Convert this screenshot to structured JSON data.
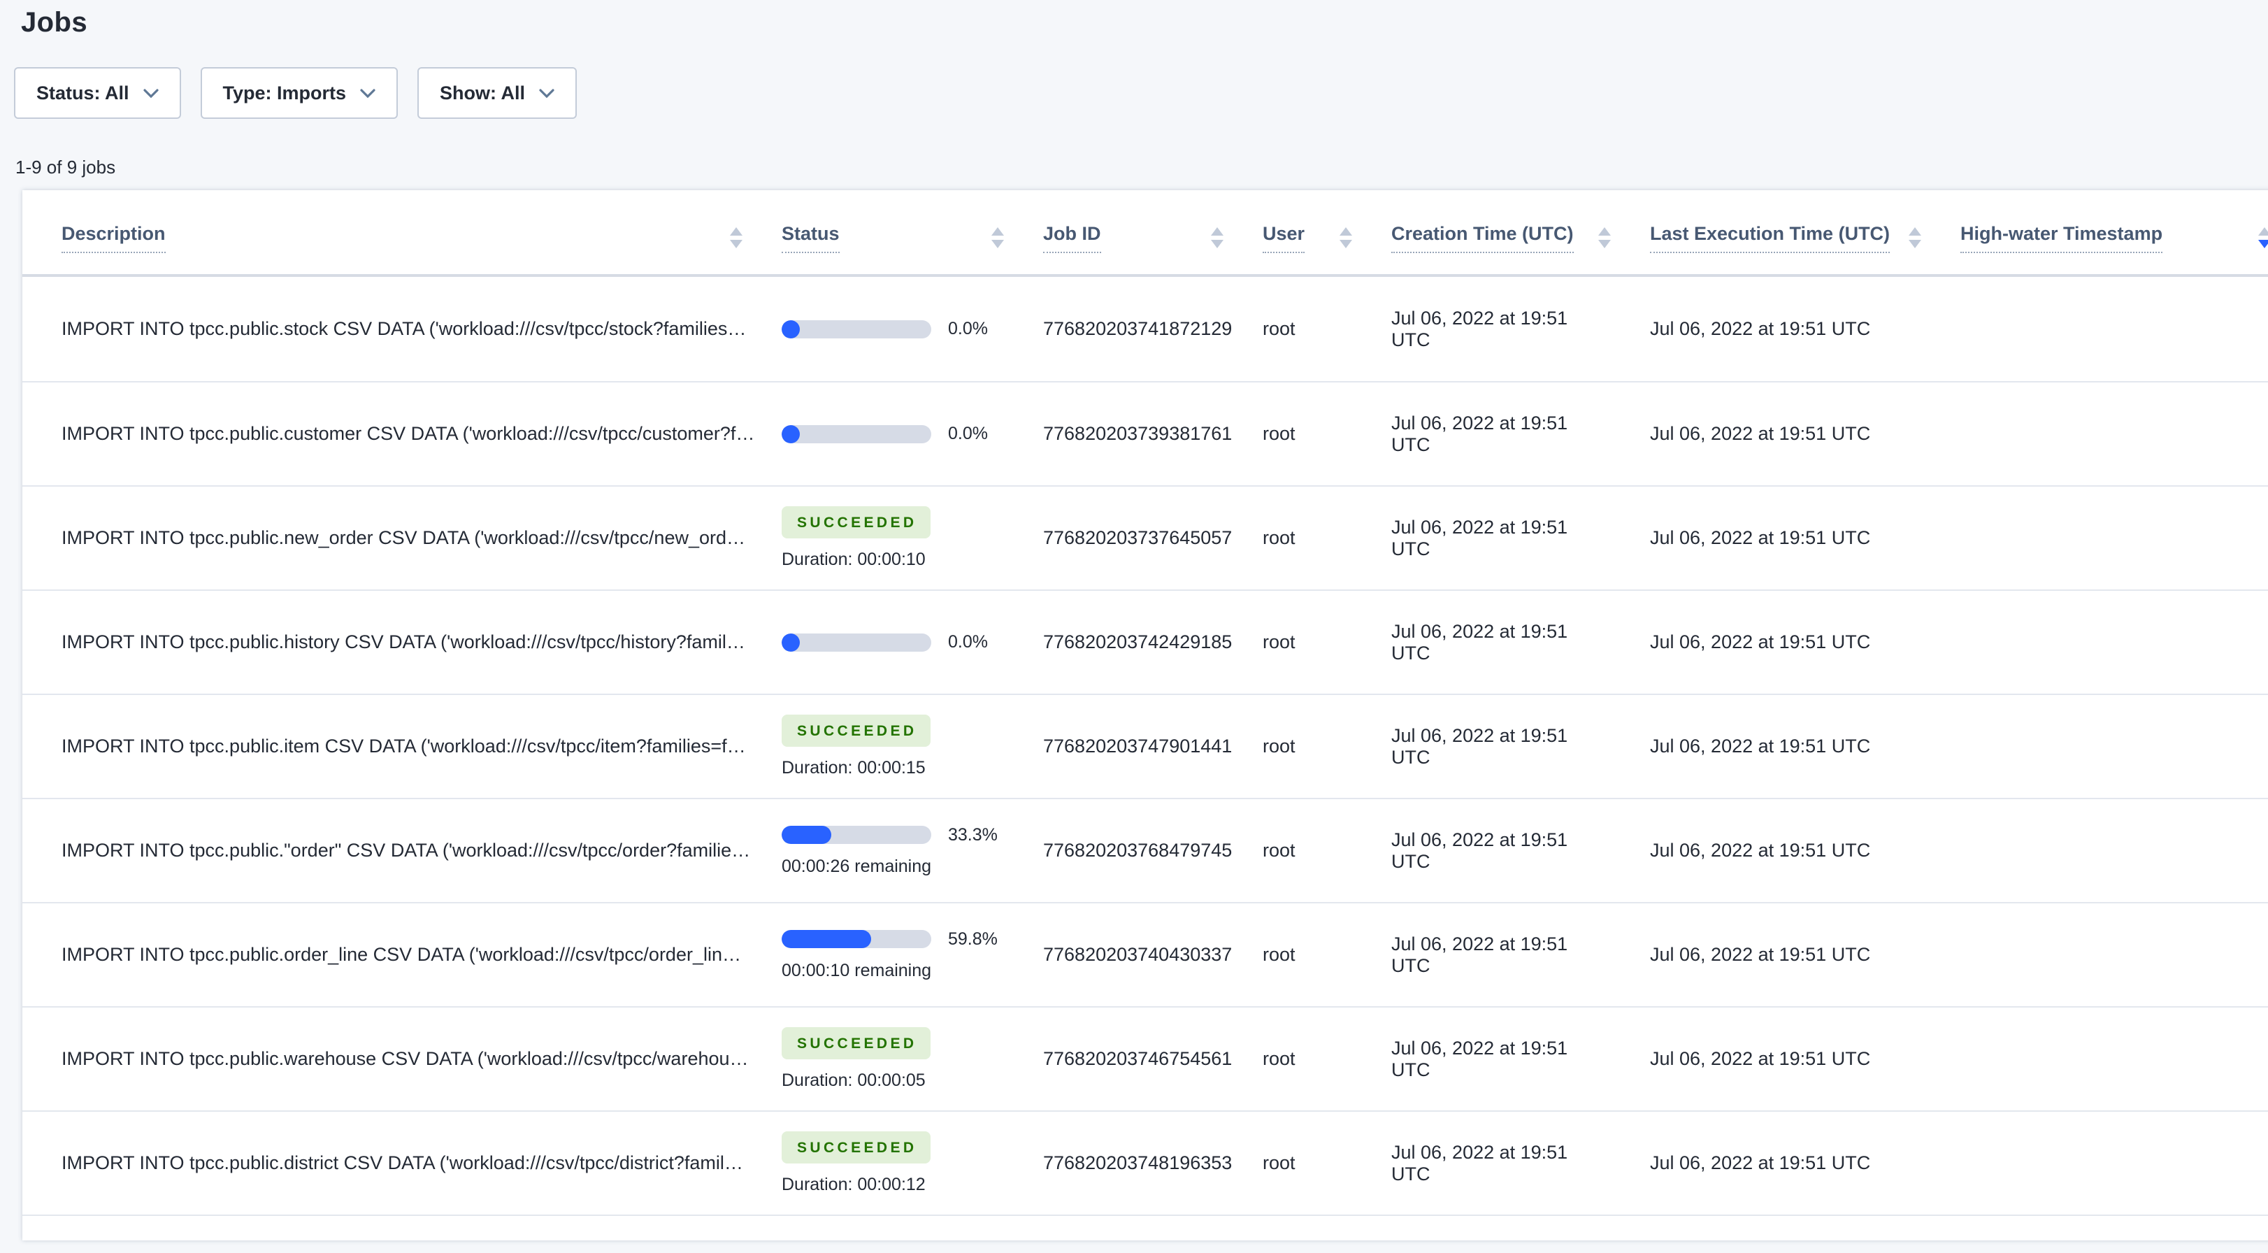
{
  "page": {
    "title": "Jobs",
    "jobs_count_label": "1-9 of 9 jobs"
  },
  "filters": [
    {
      "label": "Status: All"
    },
    {
      "label": "Type: Imports"
    },
    {
      "label": "Show: All"
    }
  ],
  "table": {
    "columns": [
      {
        "key": "description",
        "label": "Description",
        "sortable": true
      },
      {
        "key": "status",
        "label": "Status",
        "sortable": true
      },
      {
        "key": "job-id",
        "label": "Job ID",
        "sortable": true
      },
      {
        "key": "user",
        "label": "User",
        "sortable": true
      },
      {
        "key": "creation-time",
        "label": "Creation Time (UTC)",
        "sortable": true
      },
      {
        "key": "last-execution-time",
        "label": "Last Execution Time (UTC)",
        "sortable": true
      },
      {
        "key": "high-water-timestamp",
        "label": "High-water Timestamp",
        "sortable": true,
        "sort_active": "desc"
      }
    ],
    "rows": [
      {
        "description": "IMPORT INTO tpcc.public.stock CSV DATA ('workload:///csv/tpcc/stock?families…",
        "status": {
          "state": "running",
          "percent": "0.0%",
          "percent_value": 0.0
        },
        "job_id": "776820203741872129",
        "user": "root",
        "creation_time": "Jul 06, 2022 at 19:51 UTC",
        "last_execution_time": "Jul 06, 2022 at 19:51 UTC",
        "high_water_timestamp": ""
      },
      {
        "description": "IMPORT INTO tpcc.public.customer CSV DATA ('workload:///csv/tpcc/customer?f…",
        "status": {
          "state": "running",
          "percent": "0.0%",
          "percent_value": 0.0
        },
        "job_id": "776820203739381761",
        "user": "root",
        "creation_time": "Jul 06, 2022 at 19:51 UTC",
        "last_execution_time": "Jul 06, 2022 at 19:51 UTC",
        "high_water_timestamp": ""
      },
      {
        "description": "IMPORT INTO tpcc.public.new_order CSV DATA ('workload:///csv/tpcc/new_ord…",
        "status": {
          "state": "succeeded",
          "badge": "SUCCEEDED",
          "duration": "Duration: 00:00:10"
        },
        "job_id": "776820203737645057",
        "user": "root",
        "creation_time": "Jul 06, 2022 at 19:51 UTC",
        "last_execution_time": "Jul 06, 2022 at 19:51 UTC",
        "high_water_timestamp": ""
      },
      {
        "description": "IMPORT INTO tpcc.public.history CSV DATA ('workload:///csv/tpcc/history?famil…",
        "status": {
          "state": "running",
          "percent": "0.0%",
          "percent_value": 0.0
        },
        "job_id": "776820203742429185",
        "user": "root",
        "creation_time": "Jul 06, 2022 at 19:51 UTC",
        "last_execution_time": "Jul 06, 2022 at 19:51 UTC",
        "high_water_timestamp": ""
      },
      {
        "description": "IMPORT INTO tpcc.public.item CSV DATA ('workload:///csv/tpcc/item?families=f…",
        "status": {
          "state": "succeeded",
          "badge": "SUCCEEDED",
          "duration": "Duration: 00:00:15"
        },
        "job_id": "776820203747901441",
        "user": "root",
        "creation_time": "Jul 06, 2022 at 19:51 UTC",
        "last_execution_time": "Jul 06, 2022 at 19:51 UTC",
        "high_water_timestamp": ""
      },
      {
        "description": "IMPORT INTO tpcc.public.\"order\" CSV DATA ('workload:///csv/tpcc/order?familie…",
        "status": {
          "state": "running",
          "percent": "33.3%",
          "percent_value": 33.3,
          "remaining": "00:00:26 remaining"
        },
        "job_id": "776820203768479745",
        "user": "root",
        "creation_time": "Jul 06, 2022 at 19:51 UTC",
        "last_execution_time": "Jul 06, 2022 at 19:51 UTC",
        "high_water_timestamp": ""
      },
      {
        "description": "IMPORT INTO tpcc.public.order_line CSV DATA ('workload:///csv/tpcc/order_lin…",
        "status": {
          "state": "running",
          "percent": "59.8%",
          "percent_value": 59.8,
          "remaining": "00:00:10 remaining"
        },
        "job_id": "776820203740430337",
        "user": "root",
        "creation_time": "Jul 06, 2022 at 19:51 UTC",
        "last_execution_time": "Jul 06, 2022 at 19:51 UTC",
        "high_water_timestamp": ""
      },
      {
        "description": "IMPORT INTO tpcc.public.warehouse CSV DATA ('workload:///csv/tpcc/warehou…",
        "status": {
          "state": "succeeded",
          "badge": "SUCCEEDED",
          "duration": "Duration: 00:00:05"
        },
        "job_id": "776820203746754561",
        "user": "root",
        "creation_time": "Jul 06, 2022 at 19:51 UTC",
        "last_execution_time": "Jul 06, 2022 at 19:51 UTC",
        "high_water_timestamp": ""
      },
      {
        "description": "IMPORT INTO tpcc.public.district CSV DATA ('workload:///csv/tpcc/district?famil…",
        "status": {
          "state": "succeeded",
          "badge": "SUCCEEDED",
          "duration": "Duration: 00:00:12"
        },
        "job_id": "776820203748196353",
        "user": "root",
        "creation_time": "Jul 06, 2022 at 19:51 UTC",
        "last_execution_time": "Jul 06, 2022 at 19:51 UTC",
        "high_water_timestamp": ""
      }
    ]
  },
  "colors": {
    "accent_blue": "#2962ff",
    "progress_track": "#d6dbe6",
    "succeeded_bg": "#e2f0d9",
    "succeeded_text": "#237300",
    "page_bg": "#f5f7fa",
    "text_dark": "#242a35",
    "header_text": "#475872"
  }
}
